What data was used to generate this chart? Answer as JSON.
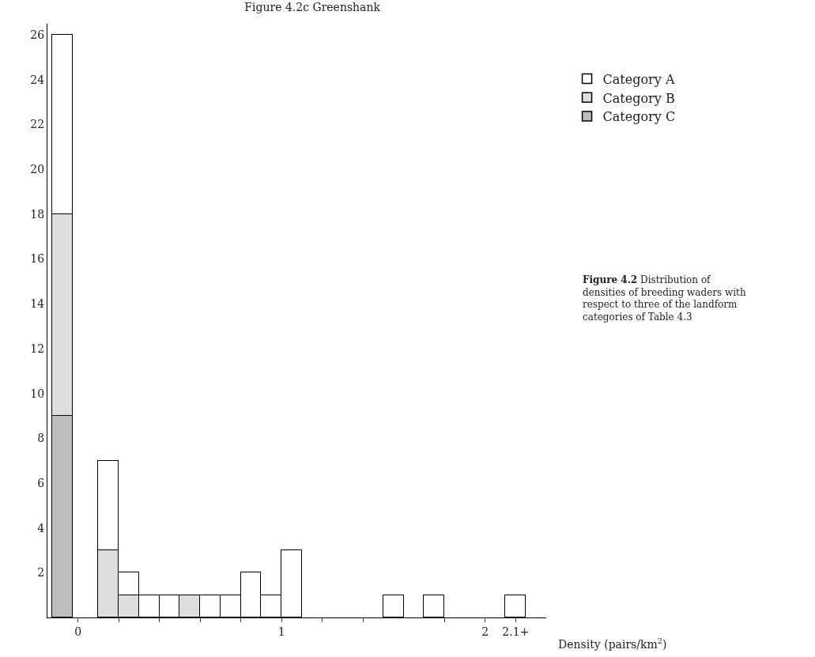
{
  "chart_data": {
    "type": "bar",
    "stacked": true,
    "title": "Figure 4.2c Greenshank",
    "xlabel": "Density (pairs/km$^{2}$)",
    "x": [
      -0.075,
      0.15,
      0.25,
      0.35,
      0.45,
      0.55,
      0.65,
      0.75,
      0.85,
      0.95,
      1.05,
      1.55,
      1.75,
      2.15
    ],
    "series": [
      {
        "name": "Category C",
        "color": "#bdbdbd",
        "values": [
          9,
          null,
          null,
          null,
          null,
          null,
          null,
          null,
          null,
          null,
          null,
          null,
          null,
          null
        ]
      },
      {
        "name": "Category B",
        "color": "#dedede",
        "values": [
          9,
          3,
          1,
          null,
          null,
          1,
          null,
          null,
          null,
          null,
          null,
          null,
          null,
          null
        ]
      },
      {
        "name": "Category A",
        "color": "#ffffff",
        "values": [
          8,
          4,
          1,
          1,
          1,
          null,
          1,
          1,
          2,
          1,
          3,
          1,
          1,
          1
        ]
      }
    ],
    "xlim": [
      -0.15,
      2.3
    ],
    "xticks": [
      0,
      1,
      2,
      {
        "value": 2.15,
        "label": "2.1+"
      },
      {
        "value": 0.2,
        "label": null
      },
      {
        "value": 0.4,
        "label": null
      },
      {
        "value": 0.6,
        "label": null
      },
      {
        "value": 0.8,
        "label": null
      },
      {
        "value": 1.2,
        "label": null
      },
      {
        "value": 1.4,
        "label": null
      },
      {
        "value": 1.8,
        "label": null
      }
    ],
    "ylim": [
      0,
      26.5
    ],
    "yticks": [
      2,
      4,
      6,
      8,
      10,
      12,
      14,
      16,
      18,
      20,
      22,
      24,
      26
    ],
    "legend": "top right",
    "annotations": [
      "**Figure 4.2** Distribution of densities of breeding waders with respect to three of the landform categories of Table 4.3"
    ]
  }
}
